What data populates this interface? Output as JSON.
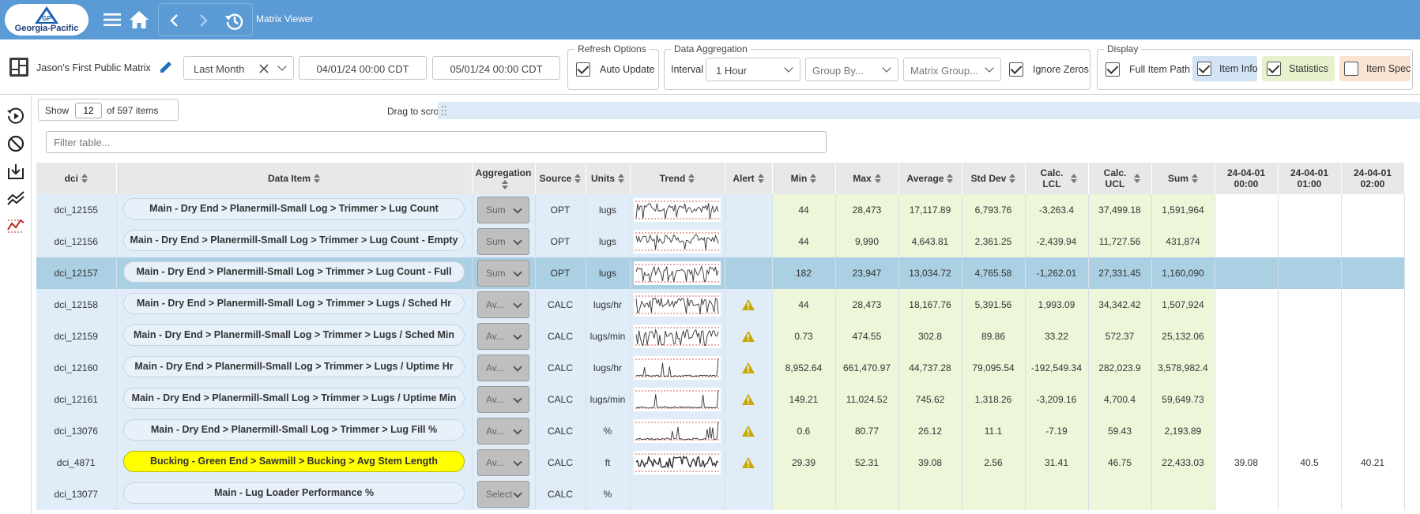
{
  "header": {
    "logo_text": "Georgia-Pacific",
    "logo_mark": "GP",
    "app_title": "Matrix Viewer",
    "icons": [
      "menu-icon",
      "home-icon",
      "back-icon",
      "forward-icon",
      "history-icon"
    ]
  },
  "toolbar": {
    "matrix_name": "Jason's First Public Matrix",
    "time_range": "Last Month",
    "start_date": "04/01/24 00:00 CDT",
    "end_date": "05/01/24 00:00 CDT",
    "refresh_legend": "Refresh Options",
    "auto_update_label": "Auto Update",
    "aggregation_legend": "Data Aggregation",
    "interval_label": "Interval",
    "interval_value": "1 Hour",
    "group_by_placeholder": "Group By...",
    "matrix_group_placeholder": "Matrix Group...",
    "ignore_zeros_label": "Ignore Zeros",
    "display_legend": "Display",
    "full_item_path_label": "Full Item Path",
    "item_info_label": "Item Info",
    "statistics_label": "Statistics",
    "item_spec_label": "Item Spec"
  },
  "controls": {
    "show_label": "Show",
    "show_count": "12",
    "of_items": "of 597 items",
    "drag_hint": "Drag to scroll",
    "filter_placeholder": "Filter table..."
  },
  "colors": {
    "header_blue": "#5b9bd5",
    "info_col": "#e0ecf8",
    "stat_col": "#eef6da",
    "selected_row": "#abcfe3",
    "highlight": "#ffff00",
    "warning": "#c9a800"
  },
  "table": {
    "columns": [
      "dci",
      "Data Item",
      "Aggregation",
      "Source",
      "Units",
      "Trend",
      "Alert",
      "Min",
      "Max",
      "Average",
      "Std Dev",
      "Calc. LCL",
      "Calc. UCL",
      "Sum",
      "24-04-01 00:00",
      "24-04-01 01:00",
      "24-04-01 02:00"
    ],
    "rows": [
      {
        "dci": "dci_12155",
        "item": "Main - Dry End > Planermill-Small Log > Trimmer > Lug Count",
        "agg": "Sum",
        "source": "OPT",
        "units": "lugs",
        "alert": false,
        "min": "44",
        "max": "28,473",
        "avg": "17,117.89",
        "std": "6,793.76",
        "lcl": "-3,263.4",
        "ucl": "37,499.18",
        "sum": "1,591,964",
        "h0": "",
        "h1": "",
        "h2": ""
      },
      {
        "dci": "dci_12156",
        "item": "Main - Dry End > Planermill-Small Log > Trimmer > Lug Count - Empty",
        "agg": "Sum",
        "source": "OPT",
        "units": "lugs",
        "alert": false,
        "min": "44",
        "max": "9,990",
        "avg": "4,643.81",
        "std": "2,361.25",
        "lcl": "-2,439.94",
        "ucl": "11,727.56",
        "sum": "431,874",
        "h0": "",
        "h1": "",
        "h2": ""
      },
      {
        "dci": "dci_12157",
        "item": "Main - Dry End > Planermill-Small Log > Trimmer > Lug Count - Full",
        "agg": "Sum",
        "source": "OPT",
        "units": "lugs",
        "alert": false,
        "min": "182",
        "max": "23,947",
        "avg": "13,034.72",
        "std": "4,765.58",
        "lcl": "-1,262.01",
        "ucl": "27,331.45",
        "sum": "1,160,090",
        "h0": "",
        "h1": "",
        "h2": ""
      },
      {
        "dci": "dci_12158",
        "item": "Main - Dry End > Planermill-Small Log > Trimmer > Lugs / Sched Hr",
        "agg": "Av...",
        "source": "CALC",
        "units": "lugs/hr",
        "alert": true,
        "min": "44",
        "max": "28,473",
        "avg": "18,167.76",
        "std": "5,391.56",
        "lcl": "1,993.09",
        "ucl": "34,342.42",
        "sum": "1,507,924",
        "h0": "",
        "h1": "",
        "h2": ""
      },
      {
        "dci": "dci_12159",
        "item": "Main - Dry End > Planermill-Small Log > Trimmer > Lugs / Sched Min",
        "agg": "Av...",
        "source": "CALC",
        "units": "lugs/min",
        "alert": true,
        "min": "0.73",
        "max": "474.55",
        "avg": "302.8",
        "std": "89.86",
        "lcl": "33.22",
        "ucl": "572.37",
        "sum": "25,132.06",
        "h0": "",
        "h1": "",
        "h2": ""
      },
      {
        "dci": "dci_12160",
        "item": "Main - Dry End > Planermill-Small Log > Trimmer > Lugs / Uptime Hr",
        "agg": "Av...",
        "source": "CALC",
        "units": "lugs/hr",
        "alert": true,
        "min": "8,952.64",
        "max": "661,470.97",
        "avg": "44,737.28",
        "std": "79,095.54",
        "lcl": "-192,549.34",
        "ucl": "282,023.9",
        "sum": "3,578,982.4",
        "h0": "",
        "h1": "",
        "h2": ""
      },
      {
        "dci": "dci_12161",
        "item": "Main - Dry End > Planermill-Small Log > Trimmer > Lugs / Uptime Min",
        "agg": "Av...",
        "source": "CALC",
        "units": "lugs/min",
        "alert": true,
        "min": "149.21",
        "max": "11,024.52",
        "avg": "745.62",
        "std": "1,318.26",
        "lcl": "-3,209.16",
        "ucl": "4,700.4",
        "sum": "59,649.73",
        "h0": "",
        "h1": "",
        "h2": ""
      },
      {
        "dci": "dci_13076",
        "item": "Main - Dry End > Planermill-Small Log > Trimmer > Lug Fill %",
        "agg": "Av...",
        "source": "CALC",
        "units": "%",
        "alert": true,
        "min": "0.6",
        "max": "80.77",
        "avg": "26.12",
        "std": "11.1",
        "lcl": "-7.19",
        "ucl": "59.43",
        "sum": "2,193.89",
        "h0": "",
        "h1": "",
        "h2": ""
      },
      {
        "dci": "dci_4871",
        "item": "Bucking - Green End > Sawmill > Bucking > Avg Stem Length",
        "agg": "Av...",
        "source": "CALC",
        "units": "ft",
        "alert": true,
        "min": "29.39",
        "max": "52.31",
        "avg": "39.08",
        "std": "2.56",
        "lcl": "31.41",
        "ucl": "46.75",
        "sum": "22,433.03",
        "h0": "39.08",
        "h1": "40.5",
        "h2": "40.21"
      },
      {
        "dci": "dci_13077",
        "item": "Main - Lug Loader Performance %",
        "agg": "Select",
        "source": "CALC",
        "units": "%",
        "alert": false,
        "min": "",
        "max": "",
        "avg": "",
        "std": "",
        "lcl": "",
        "ucl": "",
        "sum": "",
        "h0": "",
        "h1": "",
        "h2": ""
      }
    ]
  }
}
